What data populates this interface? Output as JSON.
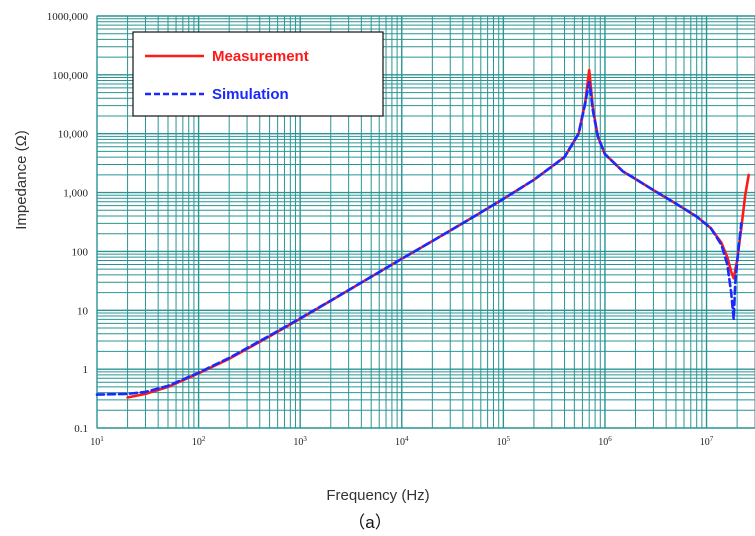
{
  "chart_data": {
    "type": "line",
    "xscale": "log",
    "yscale": "log",
    "xlim": [
      10,
      30000000
    ],
    "ylim": [
      0.1,
      1000000
    ],
    "xlabel": "Frequency (Hz)",
    "ylabel": "Impedance (Ω)",
    "caption": "（a）",
    "grid": true,
    "grid_color": "#2a9494",
    "legend_position": "top-left",
    "x_tick_labels": [
      {
        "value": 10,
        "base": "10",
        "exp": "1"
      },
      {
        "value": 100,
        "base": "10",
        "exp": "2"
      },
      {
        "value": 1000,
        "base": "10",
        "exp": "3"
      },
      {
        "value": 10000,
        "base": "10",
        "exp": "4"
      },
      {
        "value": 100000,
        "base": "10",
        "exp": "5"
      },
      {
        "value": 1000000,
        "base": "10",
        "exp": "6"
      },
      {
        "value": 10000000,
        "base": "10",
        "exp": "7"
      }
    ],
    "y_tick_labels": [
      {
        "value": 0.1,
        "label": "0.1"
      },
      {
        "value": 1,
        "label": "1"
      },
      {
        "value": 10,
        "label": "10"
      },
      {
        "value": 100,
        "label": "100"
      },
      {
        "value": 1000,
        "label": "1,000"
      },
      {
        "value": 10000,
        "label": "10,000"
      },
      {
        "value": 100000,
        "label": "100,000"
      },
      {
        "value": 1000000,
        "label": "1000,000"
      }
    ],
    "series": [
      {
        "name": "Measurement",
        "color": "#ff1a1a",
        "dash": "solid",
        "points": [
          [
            20,
            0.33
          ],
          [
            30,
            0.38
          ],
          [
            50,
            0.5
          ],
          [
            100,
            0.85
          ],
          [
            200,
            1.5
          ],
          [
            500,
            3.6
          ],
          [
            1000,
            7.2
          ],
          [
            2000,
            14.5
          ],
          [
            5000,
            37
          ],
          [
            10000,
            75
          ],
          [
            20000,
            150
          ],
          [
            50000,
            380
          ],
          [
            100000,
            780
          ],
          [
            200000,
            1650
          ],
          [
            400000,
            4000
          ],
          [
            550000,
            10000
          ],
          [
            640000,
            35000
          ],
          [
            680000,
            80000
          ],
          [
            700000,
            120000
          ],
          [
            720000,
            75000
          ],
          [
            760000,
            28000
          ],
          [
            850000,
            9000
          ],
          [
            1000000,
            4500
          ],
          [
            1500000,
            2300
          ],
          [
            2000000,
            1700
          ],
          [
            3000000,
            1100
          ],
          [
            5000000,
            650
          ],
          [
            8000000,
            390
          ],
          [
            11000000,
            250
          ],
          [
            14000000,
            140
          ],
          [
            16000000,
            80
          ],
          [
            17500000,
            45
          ],
          [
            18500000,
            35
          ],
          [
            20000000,
            70
          ],
          [
            22000000,
            250
          ],
          [
            24000000,
            900
          ],
          [
            26000000,
            2000
          ]
        ]
      },
      {
        "name": "Simulation",
        "color": "#1a2aff",
        "dash": "dashed",
        "points": [
          [
            10,
            0.37
          ],
          [
            20,
            0.38
          ],
          [
            30,
            0.41
          ],
          [
            50,
            0.52
          ],
          [
            100,
            0.87
          ],
          [
            200,
            1.55
          ],
          [
            500,
            3.7
          ],
          [
            1000,
            7.3
          ],
          [
            2000,
            14.6
          ],
          [
            5000,
            37
          ],
          [
            10000,
            75
          ],
          [
            20000,
            150
          ],
          [
            50000,
            380
          ],
          [
            100000,
            780
          ],
          [
            200000,
            1650
          ],
          [
            400000,
            4000
          ],
          [
            550000,
            10000
          ],
          [
            640000,
            33000
          ],
          [
            680000,
            60000
          ],
          [
            700000,
            75000
          ],
          [
            720000,
            55000
          ],
          [
            760000,
            25000
          ],
          [
            850000,
            9000
          ],
          [
            1000000,
            4500
          ],
          [
            1500000,
            2300
          ],
          [
            2000000,
            1700
          ],
          [
            3000000,
            1100
          ],
          [
            5000000,
            650
          ],
          [
            8000000,
            390
          ],
          [
            11000000,
            250
          ],
          [
            14000000,
            130
          ],
          [
            16000000,
            60
          ],
          [
            17500000,
            20
          ],
          [
            18500000,
            7
          ],
          [
            19200000,
            30
          ],
          [
            20500000,
            100
          ],
          [
            22000000,
            300
          ]
        ]
      }
    ]
  }
}
